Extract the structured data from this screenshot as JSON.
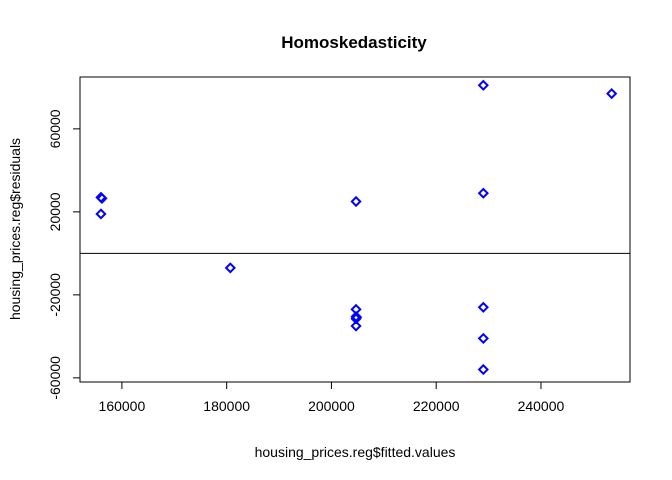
{
  "chart_data": {
    "type": "scatter",
    "title": "Homoskedasticity",
    "xlabel": "housing_prices.reg$fitted.values",
    "ylabel": "housing_prices.reg$residuals",
    "xlim": [
      152000,
      257000
    ],
    "ylim": [
      -62000,
      85000
    ],
    "x_ticks": [
      160000,
      180000,
      200000,
      220000,
      240000
    ],
    "y_ticks": [
      -60000,
      -20000,
      20000,
      60000
    ],
    "x_tick_labels": [
      "160000",
      "180000",
      "200000",
      "220000",
      "240000"
    ],
    "y_tick_labels": [
      "-60000",
      "-20000",
      "20000",
      "60000"
    ],
    "reference_line_y": 0,
    "point_color": "#0000ff",
    "points": [
      {
        "x": 156000,
        "y": 27000
      },
      {
        "x": 156200,
        "y": 26500
      },
      {
        "x": 156000,
        "y": 19000
      },
      {
        "x": 180700,
        "y": -7000
      },
      {
        "x": 204700,
        "y": 25000
      },
      {
        "x": 204700,
        "y": -27000
      },
      {
        "x": 204700,
        "y": -30500
      },
      {
        "x": 204700,
        "y": -31500
      },
      {
        "x": 204800,
        "y": -30800
      },
      {
        "x": 204700,
        "y": -35000
      },
      {
        "x": 229000,
        "y": 81000
      },
      {
        "x": 229000,
        "y": 29000
      },
      {
        "x": 229000,
        "y": -26000
      },
      {
        "x": 229000,
        "y": -41000
      },
      {
        "x": 229000,
        "y": -56000
      },
      {
        "x": 253500,
        "y": 77000
      }
    ]
  }
}
